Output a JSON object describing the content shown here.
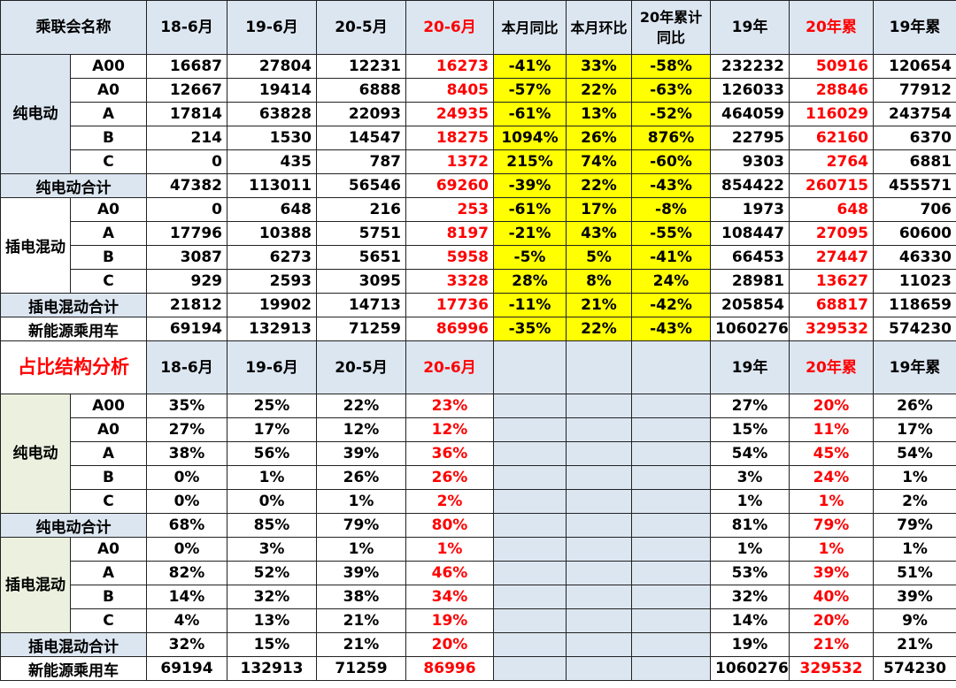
{
  "header": {
    "name": "乘联会名称",
    "cols": [
      "18-6月",
      "19-6月",
      "20-5月",
      "20-6月",
      "本月同比",
      "本月环比",
      "20年累计同比",
      "19年",
      "20年累",
      "19年累"
    ]
  },
  "groups": {
    "bev": "纯电动",
    "bev_total": "纯电动合计",
    "phev": "插电混动",
    "phev_total": "插电混动合计",
    "nev": "新能源乘用车"
  },
  "volume": {
    "bev": [
      {
        "seg": "A00",
        "v": [
          "16687",
          "27804",
          "12231",
          "16273",
          "-41%",
          "33%",
          "-58%",
          "232232",
          "50916",
          "120654"
        ]
      },
      {
        "seg": "A0",
        "v": [
          "12667",
          "19414",
          "6888",
          "8405",
          "-57%",
          "22%",
          "-63%",
          "126033",
          "28846",
          "77912"
        ]
      },
      {
        "seg": "A",
        "v": [
          "17814",
          "63828",
          "22093",
          "24935",
          "-61%",
          "13%",
          "-52%",
          "464059",
          "116029",
          "243754"
        ]
      },
      {
        "seg": "B",
        "v": [
          "214",
          "1530",
          "14547",
          "18275",
          "1094%",
          "26%",
          "876%",
          "22795",
          "62160",
          "6370"
        ]
      },
      {
        "seg": "C",
        "v": [
          "0",
          "435",
          "787",
          "1372",
          "215%",
          "74%",
          "-60%",
          "9303",
          "2764",
          "6881"
        ]
      }
    ],
    "bev_total": [
      "47382",
      "113011",
      "56546",
      "69260",
      "-39%",
      "22%",
      "-43%",
      "854422",
      "260715",
      "455571"
    ],
    "phev": [
      {
        "seg": "A0",
        "v": [
          "0",
          "648",
          "216",
          "253",
          "-61%",
          "17%",
          "-8%",
          "1973",
          "648",
          "706"
        ]
      },
      {
        "seg": "A",
        "v": [
          "17796",
          "10388",
          "5751",
          "8197",
          "-21%",
          "43%",
          "-55%",
          "108447",
          "27095",
          "60600"
        ]
      },
      {
        "seg": "B",
        "v": [
          "3087",
          "6273",
          "5651",
          "5958",
          "-5%",
          "5%",
          "-41%",
          "66453",
          "27447",
          "46330"
        ]
      },
      {
        "seg": "C",
        "v": [
          "929",
          "2593",
          "3095",
          "3328",
          "28%",
          "8%",
          "24%",
          "28981",
          "13627",
          "11023"
        ]
      }
    ],
    "phev_total": [
      "21812",
      "19902",
      "14713",
      "17736",
      "-11%",
      "21%",
      "-42%",
      "205854",
      "68817",
      "118659"
    ],
    "nev": [
      "69194",
      "132913",
      "71259",
      "86996",
      "-35%",
      "22%",
      "-43%",
      "1060276",
      "329532",
      "574230"
    ]
  },
  "share_header": {
    "title": "占比结构分析",
    "cols": [
      "18-6月",
      "19-6月",
      "20-5月",
      "20-6月",
      "19年",
      "20年累",
      "19年累"
    ]
  },
  "share": {
    "bev": [
      {
        "seg": "A00",
        "v": [
          "35%",
          "25%",
          "22%",
          "23%",
          "27%",
          "20%",
          "26%"
        ]
      },
      {
        "seg": "A0",
        "v": [
          "27%",
          "17%",
          "12%",
          "12%",
          "15%",
          "11%",
          "17%"
        ]
      },
      {
        "seg": "A",
        "v": [
          "38%",
          "56%",
          "39%",
          "36%",
          "54%",
          "45%",
          "54%"
        ]
      },
      {
        "seg": "B",
        "v": [
          "0%",
          "1%",
          "26%",
          "26%",
          "3%",
          "24%",
          "1%"
        ]
      },
      {
        "seg": "C",
        "v": [
          "0%",
          "0%",
          "1%",
          "2%",
          "1%",
          "1%",
          "2%"
        ]
      }
    ],
    "bev_total": [
      "68%",
      "85%",
      "79%",
      "80%",
      "81%",
      "79%",
      "79%"
    ],
    "phev": [
      {
        "seg": "A0",
        "v": [
          "0%",
          "3%",
          "1%",
          "1%",
          "1%",
          "1%",
          "1%"
        ]
      },
      {
        "seg": "A",
        "v": [
          "82%",
          "52%",
          "39%",
          "46%",
          "53%",
          "39%",
          "51%"
        ]
      },
      {
        "seg": "B",
        "v": [
          "14%",
          "32%",
          "38%",
          "34%",
          "32%",
          "40%",
          "39%"
        ]
      },
      {
        "seg": "C",
        "v": [
          "4%",
          "13%",
          "21%",
          "19%",
          "14%",
          "20%",
          "9%"
        ]
      }
    ],
    "phev_total": [
      "32%",
      "15%",
      "21%",
      "20%",
      "19%",
      "21%",
      "21%"
    ],
    "nev": [
      "69194",
      "132913",
      "71259",
      "86996",
      "1060276",
      "329532",
      "574230"
    ]
  }
}
